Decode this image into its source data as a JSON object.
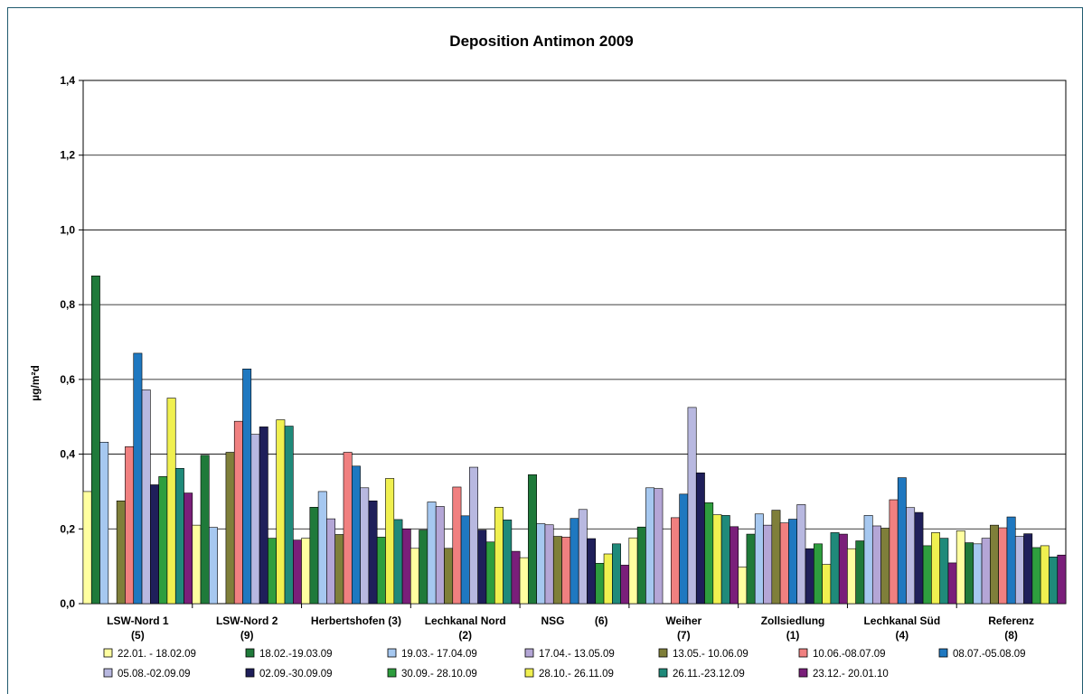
{
  "chart_data": {
    "type": "bar",
    "title": "Deposition Antimon 2009",
    "xlabel": "",
    "ylabel": "µg/m²d",
    "ylim": [
      0,
      1.4
    ],
    "yticks": [
      "0,0",
      "0,2",
      "0,4",
      "0,6",
      "0,8",
      "1,0",
      "1,2",
      "1,4"
    ],
    "grid": true,
    "legend_position": "bottom",
    "categories": [
      [
        "LSW-Nord 1",
        "(5)"
      ],
      [
        "LSW-Nord 2",
        "(9)"
      ],
      [
        "Herbertshofen (3)"
      ],
      [
        "Lechkanal Nord",
        "(2)"
      ],
      [
        "NSG          (6)"
      ],
      [
        "Weiher",
        "(7)"
      ],
      [
        "Zollsiedlung",
        "(1)"
      ],
      [
        "Lechkanal Süd",
        "(4)"
      ],
      [
        "Referenz",
        "(8)"
      ]
    ],
    "series": [
      {
        "name": "22.01. - 18.02.09",
        "color": "#ffffa0",
        "values": [
          0.3,
          0.21,
          0.175,
          0.148,
          0.123,
          0.176,
          0.098,
          0.147,
          0.195
        ]
      },
      {
        "name": "18.02.-19.03.09",
        "color": "#1f7a3a",
        "values": [
          0.877,
          0.397,
          0.258,
          0.197,
          0.345,
          0.205,
          0.186,
          0.168,
          0.163
        ]
      },
      {
        "name": "19.03.- 17.04.09",
        "color": "#a6c8f0",
        "values": [
          0.432,
          0.204,
          0.3,
          0.272,
          0.214,
          0.31,
          0.24,
          0.236,
          0.16
        ]
      },
      {
        "name": "17.04.- 13.05.09",
        "color": "#b4a6d6",
        "values": [
          0.0,
          0.0,
          0.227,
          0.26,
          0.211,
          0.308,
          0.21,
          0.208,
          0.175
        ]
      },
      {
        "name": "13.05.- 10.06.09",
        "color": "#7f7f3a",
        "values": [
          0.275,
          0.405,
          0.185,
          0.148,
          0.18,
          0.0,
          0.25,
          0.202,
          0.21
        ]
      },
      {
        "name": "10.06.-08.07.09",
        "color": "#f08080",
        "values": [
          0.42,
          0.488,
          0.405,
          0.312,
          0.178,
          0.23,
          0.216,
          0.278,
          0.203
        ]
      },
      {
        "name": "08.07.-05.08.09",
        "color": "#1f78c0",
        "values": [
          0.67,
          0.628,
          0.368,
          0.235,
          0.228,
          0.293,
          0.226,
          0.337,
          0.232
        ]
      },
      {
        "name": "05.08.-02.09.09",
        "color": "#b8b8e0",
        "values": [
          0.572,
          0.453,
          0.31,
          0.365,
          0.252,
          0.525,
          0.265,
          0.257,
          0.18
        ]
      },
      {
        "name": "02.09.-30.09.09",
        "color": "#1f1f5a",
        "values": [
          0.318,
          0.473,
          0.275,
          0.197,
          0.174,
          0.35,
          0.147,
          0.244,
          0.187
        ]
      },
      {
        "name": "30.09.- 28.10.09",
        "color": "#2e9e3e",
        "values": [
          0.34,
          0.175,
          0.178,
          0.165,
          0.108,
          0.27,
          0.16,
          0.155,
          0.15
        ]
      },
      {
        "name": "28.10.- 26.11.09",
        "color": "#f0f050",
        "values": [
          0.55,
          0.492,
          0.335,
          0.258,
          0.133,
          0.238,
          0.105,
          0.19,
          0.155
        ]
      },
      {
        "name": "26.11.-23.12.09",
        "color": "#1f8a7a",
        "values": [
          0.362,
          0.475,
          0.225,
          0.224,
          0.16,
          0.236,
          0.19,
          0.175,
          0.125
        ]
      },
      {
        "name": "23.12.- 20.01.10",
        "color": "#7a1f7a",
        "values": [
          0.296,
          0.17,
          0.2,
          0.14,
          0.103,
          0.206,
          0.186,
          0.109,
          0.13
        ]
      }
    ]
  }
}
